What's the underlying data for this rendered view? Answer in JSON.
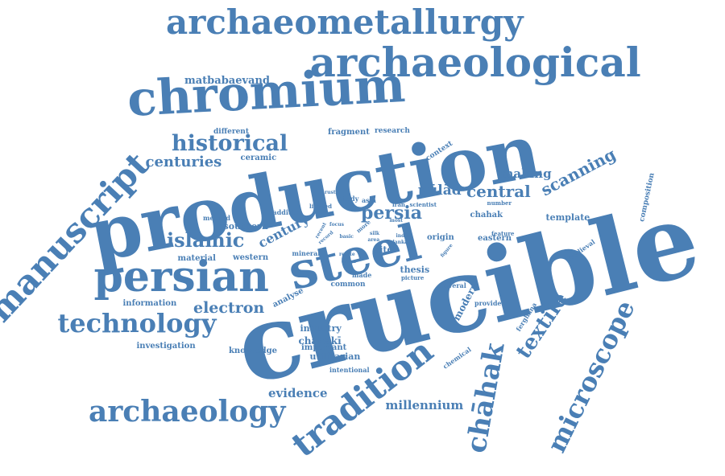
{
  "style": {
    "word_color": "#4a7fb5",
    "background": "#ffffff"
  },
  "words": [
    {
      "key": "crucible",
      "text": "crucible"
    },
    {
      "key": "production",
      "text": "production"
    },
    {
      "key": "steel",
      "text": "steel"
    },
    {
      "key": "chromium",
      "text": "chromium"
    },
    {
      "key": "archaeological",
      "text": "archaeological"
    },
    {
      "key": "archaeometallurgy",
      "text": "archaeometallurgy"
    },
    {
      "key": "persian",
      "text": "persian"
    },
    {
      "key": "manuscript",
      "text": "manuscript"
    },
    {
      "key": "tradition",
      "text": "tradition"
    },
    {
      "key": "archaeology",
      "text": "archaeology"
    },
    {
      "key": "technology",
      "text": "technology"
    },
    {
      "key": "chahak_macron",
      "text": "chāhak"
    },
    {
      "key": "microscope",
      "text": "microscope"
    },
    {
      "key": "textile",
      "text": "textile"
    },
    {
      "key": "historical",
      "text": "historical"
    },
    {
      "key": "islamic",
      "text": "islamic"
    },
    {
      "key": "scanning",
      "text": "scanning"
    },
    {
      "key": "central",
      "text": "central"
    },
    {
      "key": "persia",
      "text": "persia"
    },
    {
      "key": "electron",
      "text": "electron"
    },
    {
      "key": "centuries",
      "text": "centuries"
    },
    {
      "key": "century",
      "text": "century"
    },
    {
      "key": "pulad",
      "text": "pūlād"
    },
    {
      "key": "making",
      "text": "making"
    },
    {
      "key": "evidence",
      "text": "evidence"
    },
    {
      "key": "millennium",
      "text": "millennium"
    },
    {
      "key": "matbabaevand",
      "text": "matbabaevand"
    },
    {
      "key": "fragment",
      "text": "fragment"
    },
    {
      "key": "research",
      "text": "research"
    },
    {
      "key": "different",
      "text": "different"
    },
    {
      "key": "ceramic",
      "text": "ceramic"
    },
    {
      "key": "context",
      "text": "context"
    },
    {
      "key": "southern",
      "text": "southern"
    },
    {
      "key": "material",
      "text": "material"
    },
    {
      "key": "western",
      "text": "western"
    },
    {
      "key": "method",
      "text": "method"
    },
    {
      "key": "addition",
      "text": "addition"
    },
    {
      "key": "limited",
      "text": "limited"
    },
    {
      "key": "study",
      "text": "study"
    },
    {
      "key": "asia",
      "text": "asia"
    },
    {
      "key": "iran",
      "text": "iran"
    },
    {
      "key": "scientist",
      "text": "scientist"
    },
    {
      "key": "number",
      "text": "number"
    },
    {
      "key": "chahak_short",
      "text": "chahak"
    },
    {
      "key": "template",
      "text": "template"
    },
    {
      "key": "composition",
      "text": "composition"
    },
    {
      "key": "origin",
      "text": "origin"
    },
    {
      "key": "eastern",
      "text": "eastern"
    },
    {
      "key": "feature",
      "text": "feature"
    },
    {
      "key": "medieval",
      "text": "medieval"
    },
    {
      "key": "site",
      "text": "site"
    },
    {
      "key": "thesis",
      "text": "thesis"
    },
    {
      "key": "picture",
      "text": "picture"
    },
    {
      "key": "mineral",
      "text": "mineral"
    },
    {
      "key": "made",
      "text": "made"
    },
    {
      "key": "common",
      "text": "common"
    },
    {
      "key": "analyse",
      "text": "analyse"
    },
    {
      "key": "information",
      "text": "information"
    },
    {
      "key": "industry",
      "text": "industry"
    },
    {
      "key": "chahaki",
      "text": "chāhakī"
    },
    {
      "key": "important",
      "text": "important"
    },
    {
      "key": "utilitarian",
      "text": "utilitarian"
    },
    {
      "key": "investigation",
      "text": "investigation"
    },
    {
      "key": "knowledge",
      "text": "knowledge"
    },
    {
      "key": "intentional",
      "text": "intentional"
    },
    {
      "key": "modern",
      "text": "modern"
    },
    {
      "key": "several",
      "text": "several"
    },
    {
      "key": "provide",
      "text": "provide"
    },
    {
      "key": "ferghana",
      "text": "ferghana"
    },
    {
      "key": "chemical",
      "text": "chemical"
    },
    {
      "key": "focus",
      "text": "focus"
    },
    {
      "key": "basic",
      "text": "basic"
    },
    {
      "key": "relate",
      "text": "relate"
    },
    {
      "key": "asian",
      "text": "asian"
    },
    {
      "key": "silk",
      "text": "silk"
    },
    {
      "key": "area",
      "text": "area"
    },
    {
      "key": "lanka",
      "text": "lanka"
    },
    {
      "key": "india",
      "text": "india"
    },
    {
      "key": "most",
      "text": "most"
    },
    {
      "key": "more",
      "text": "more"
    },
    {
      "key": "rust",
      "text": "rust"
    },
    {
      "key": "recent",
      "text": "recent"
    },
    {
      "key": "record",
      "text": "record"
    },
    {
      "key": "figure",
      "text": "figure"
    }
  ]
}
